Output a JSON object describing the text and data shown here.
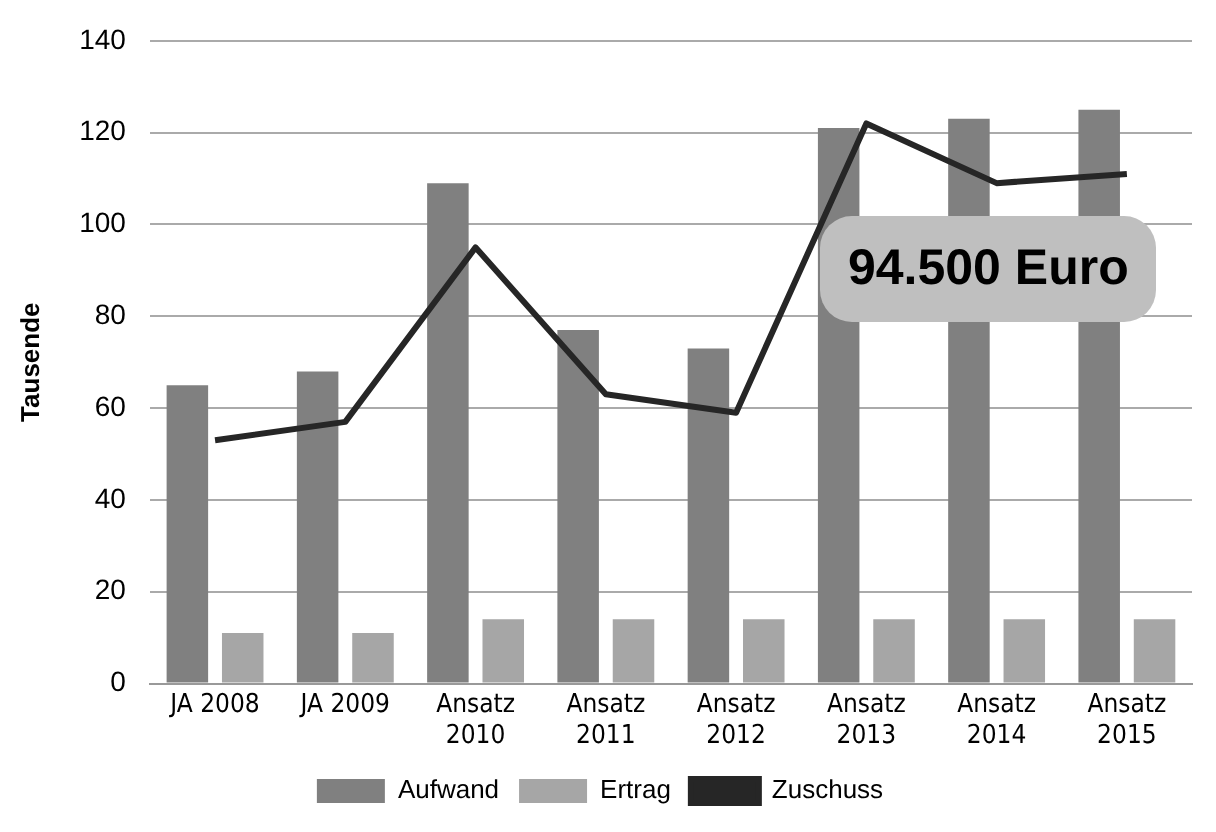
{
  "chart_data": {
    "type": "bar",
    "ylabel": "Tausende",
    "categories": [
      "JA 2008",
      "JA 2009",
      "Ansatz 2010",
      "Ansatz 2011",
      "Ansatz 2012",
      "Ansatz 2013",
      "Ansatz 2014",
      "Ansatz 2015"
    ],
    "series": [
      {
        "name": "Aufwand",
        "color": "#808080",
        "values": [
          65,
          68,
          109,
          77,
          73,
          121,
          123,
          125
        ]
      },
      {
        "name": "Ertrag",
        "color": "#a6a6a6",
        "values": [
          11,
          11,
          14,
          14,
          14,
          14,
          14,
          14
        ]
      },
      {
        "name": "Zuschuss",
        "type": "line",
        "color": "#262626",
        "values": [
          53,
          57,
          95,
          63,
          59,
          122,
          109,
          111
        ]
      }
    ],
    "ylim": [
      0,
      140
    ],
    "yticks": [
      0,
      20,
      40,
      60,
      80,
      100,
      120,
      140
    ],
    "grid": "y",
    "legend": "bottom",
    "marker": "none",
    "annotations": [
      "94.500 Euro"
    ]
  }
}
